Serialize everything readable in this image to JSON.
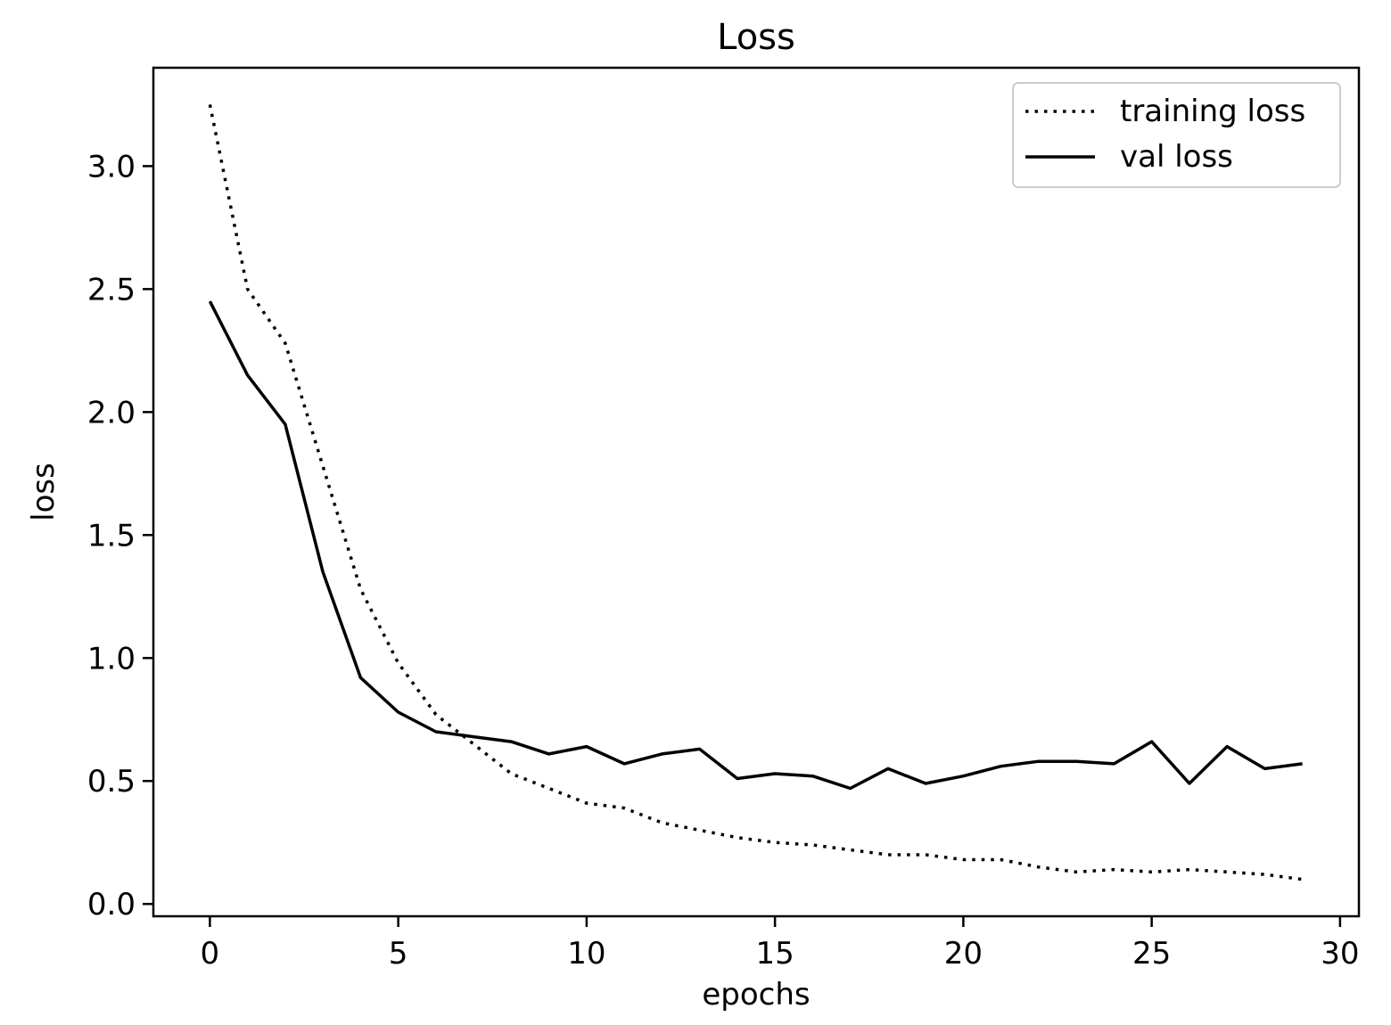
{
  "chart_data": {
    "type": "line",
    "title": "Loss",
    "xlabel": "epochs",
    "ylabel": "loss",
    "xlim": [
      -1.5,
      30.5
    ],
    "ylim": [
      -0.05,
      3.4
    ],
    "xticks": [
      0,
      5,
      10,
      15,
      20,
      25,
      30
    ],
    "xtick_labels": [
      "0",
      "5",
      "10",
      "15",
      "20",
      "25",
      "30"
    ],
    "yticks": [
      0.0,
      0.5,
      1.0,
      1.5,
      2.0,
      2.5,
      3.0
    ],
    "ytick_labels": [
      "0.0",
      "0.5",
      "1.0",
      "1.5",
      "2.0",
      "2.5",
      "3.0"
    ],
    "grid": false,
    "legend_position": "top-right",
    "x": [
      0,
      1,
      2,
      3,
      4,
      5,
      6,
      7,
      8,
      9,
      10,
      11,
      12,
      13,
      14,
      15,
      16,
      17,
      18,
      19,
      20,
      21,
      22,
      23,
      24,
      25,
      26,
      27,
      28,
      29
    ],
    "series": [
      {
        "name": "training loss",
        "style": "dotted",
        "color": "#000000",
        "values": [
          3.25,
          2.5,
          2.28,
          1.78,
          1.28,
          0.98,
          0.77,
          0.65,
          0.53,
          0.47,
          0.41,
          0.39,
          0.33,
          0.3,
          0.27,
          0.25,
          0.24,
          0.22,
          0.2,
          0.2,
          0.18,
          0.18,
          0.15,
          0.13,
          0.14,
          0.13,
          0.14,
          0.13,
          0.12,
          0.1
        ]
      },
      {
        "name": "val loss",
        "style": "solid",
        "color": "#000000",
        "values": [
          2.45,
          2.15,
          1.95,
          1.35,
          0.92,
          0.78,
          0.7,
          0.68,
          0.66,
          0.61,
          0.64,
          0.57,
          0.61,
          0.63,
          0.51,
          0.53,
          0.52,
          0.47,
          0.55,
          0.49,
          0.52,
          0.56,
          0.58,
          0.58,
          0.57,
          0.66,
          0.49,
          0.64,
          0.55,
          0.57
        ]
      }
    ]
  }
}
